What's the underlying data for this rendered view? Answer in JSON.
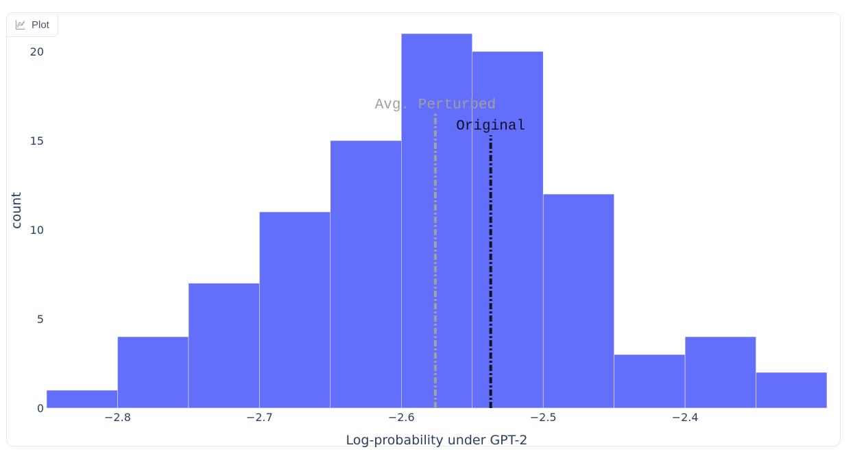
{
  "tab": {
    "label": "Plot",
    "icon": "chart-icon"
  },
  "chart_data": {
    "type": "bar",
    "bins": [
      {
        "x0": -2.85,
        "x1": -2.8,
        "count": 1
      },
      {
        "x0": -2.8,
        "x1": -2.75,
        "count": 4
      },
      {
        "x0": -2.75,
        "x1": -2.7,
        "count": 7
      },
      {
        "x0": -2.7,
        "x1": -2.65,
        "count": 11
      },
      {
        "x0": -2.65,
        "x1": -2.6,
        "count": 15
      },
      {
        "x0": -2.6,
        "x1": -2.55,
        "count": 21
      },
      {
        "x0": -2.55,
        "x1": -2.5,
        "count": 20
      },
      {
        "x0": -2.5,
        "x1": -2.45,
        "count": 12
      },
      {
        "x0": -2.45,
        "x1": -2.4,
        "count": 3
      },
      {
        "x0": -2.4,
        "x1": -2.35,
        "count": 4
      },
      {
        "x0": -2.35,
        "x1": -2.3,
        "count": 2
      }
    ],
    "bar_color": "#636efa",
    "xlabel": "Log-probability under GPT-2",
    "ylabel": "count",
    "xlim": [
      -2.85,
      -2.3
    ],
    "ylim": [
      0,
      21
    ],
    "x_ticks": [
      {
        "value": -2.8,
        "label": "−2.8"
      },
      {
        "value": -2.7,
        "label": "−2.7"
      },
      {
        "value": -2.6,
        "label": "−2.6"
      },
      {
        "value": -2.5,
        "label": "−2.5"
      },
      {
        "value": -2.4,
        "label": "−2.4"
      }
    ],
    "y_ticks": [
      {
        "value": 0,
        "label": "0"
      },
      {
        "value": 5,
        "label": "5"
      },
      {
        "value": 10,
        "label": "10"
      },
      {
        "value": 15,
        "label": "15"
      },
      {
        "value": 20,
        "label": "20"
      }
    ],
    "vlines": [
      {
        "name": "Avg. Perturbed",
        "x": -2.576,
        "top": 16.5,
        "color": "#a0a0a0",
        "label_color": "#a0a0a0",
        "style": "dashdot"
      },
      {
        "name": "Original",
        "x": -2.537,
        "top": 15.3,
        "color": "#111122",
        "label_color": "#111122",
        "style": "dashdot"
      }
    ],
    "grid": false,
    "legend": "none"
  }
}
